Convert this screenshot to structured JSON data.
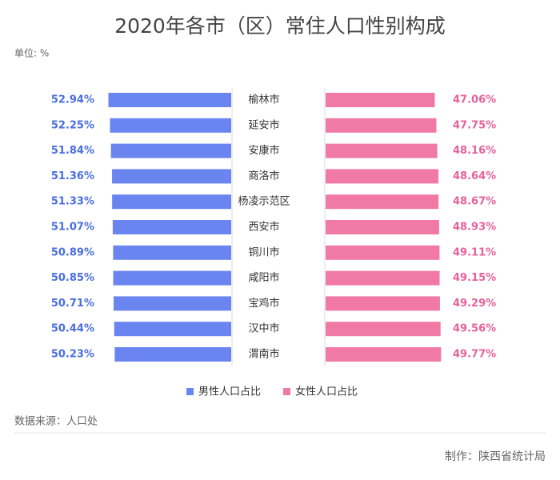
{
  "chart_data": {
    "type": "butterfly",
    "title": "2020年各市（区）常住人口性别构成",
    "unit": "单位: %",
    "source": "数据来源：人口处",
    "credit": "制作：陕西省统计局",
    "categories": [
      "榆林市",
      "延安市",
      "安康市",
      "商洛市",
      "杨凌示范区",
      "西安市",
      "铜川市",
      "咸阳市",
      "宝鸡市",
      "汉中市",
      "渭南市"
    ],
    "series": [
      {
        "name": "男性人口占比",
        "color": "#6a85f0",
        "label_color": "#4a6ee0",
        "values": [
          52.94,
          52.25,
          51.84,
          51.36,
          51.33,
          51.07,
          50.89,
          50.85,
          50.71,
          50.44,
          50.23
        ],
        "value_labels": [
          "52.94%",
          "52.25%",
          "51.84%",
          "51.36%",
          "51.33%",
          "51.07%",
          "50.89%",
          "50.85%",
          "50.71%",
          "50.44%",
          "50.23%"
        ]
      },
      {
        "name": "女性人口占比",
        "color": "#f07aa5",
        "label_color": "#e6619a",
        "values": [
          47.06,
          47.75,
          48.16,
          48.64,
          48.67,
          48.93,
          49.11,
          49.15,
          49.29,
          49.56,
          49.77
        ],
        "value_labels": [
          "47.06%",
          "47.75%",
          "48.16%",
          "48.64%",
          "48.67%",
          "48.93%",
          "49.11%",
          "49.15%",
          "49.29%",
          "49.56%",
          "49.77%"
        ]
      }
    ]
  }
}
